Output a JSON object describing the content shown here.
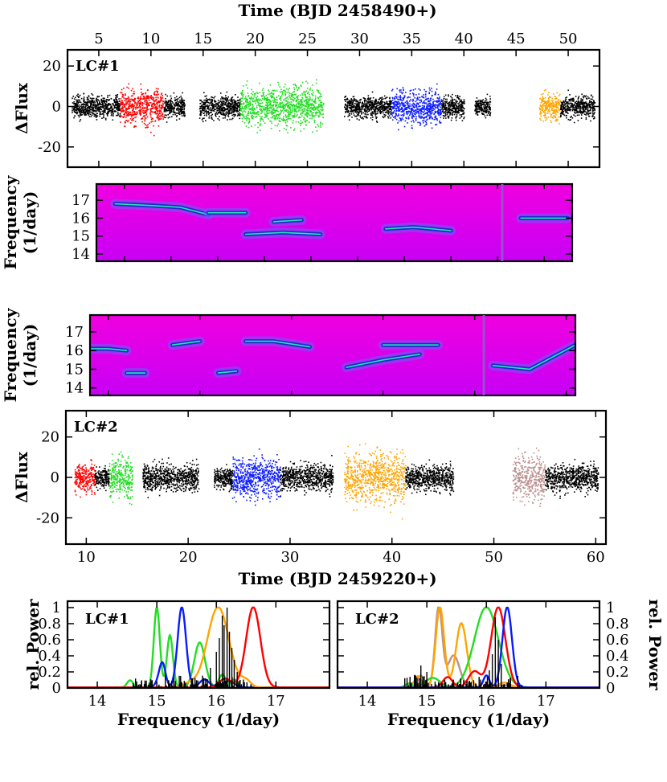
{
  "colors": {
    "red": "#ff0000",
    "green": "#22dd22",
    "blue": "#0a1aff",
    "orange": "#ffa500",
    "rosy": "#bc8f8f",
    "black": "#000000",
    "grey": "#a9a9a9",
    "magenta": "#e100f0",
    "ridge": "#1a2ec0"
  },
  "chart_data": [
    {
      "type": "scatter",
      "panel_label": "LC#1",
      "title": "Time (BJD 2458490+)",
      "xlabel": "",
      "ylabel": "ΔFlux",
      "xlim": [
        2,
        53
      ],
      "ylim": [
        -30,
        28
      ],
      "xticks": [
        5,
        10,
        15,
        20,
        25,
        30,
        35,
        40,
        45,
        50
      ],
      "yticks": [
        -20,
        0,
        20
      ],
      "xtick_labels": [
        "5",
        "10",
        "15",
        "20",
        "25",
        "30",
        "35",
        "40",
        "45",
        "50"
      ],
      "ytick_labels": [
        "-20",
        "0",
        "20"
      ],
      "segments": [
        {
          "t0": 2.4,
          "t1": 7.0,
          "color": "black",
          "amp": 12
        },
        {
          "t0": 7.0,
          "t1": 11.2,
          "color": "red",
          "amp": 20
        },
        {
          "t0": 11.2,
          "t1": 13.2,
          "color": "black",
          "amp": 12
        },
        {
          "t0": 14.6,
          "t1": 18.5,
          "color": "black",
          "amp": 12
        },
        {
          "t0": 18.5,
          "t1": 26.5,
          "color": "green",
          "amp": 22
        },
        {
          "t0": 28.5,
          "t1": 33.0,
          "color": "black",
          "amp": 12
        },
        {
          "t0": 33.0,
          "t1": 37.8,
          "color": "blue",
          "amp": 20
        },
        {
          "t0": 37.8,
          "t1": 40.0,
          "color": "black",
          "amp": 12
        },
        {
          "t0": 41.0,
          "t1": 42.5,
          "color": "black",
          "amp": 10
        },
        {
          "t0": 47.2,
          "t1": 49.2,
          "color": "orange",
          "amp": 15
        },
        {
          "t0": 49.2,
          "t1": 52.5,
          "color": "black",
          "amp": 12
        }
      ]
    },
    {
      "type": "heatmap",
      "title": "",
      "xlabel": "",
      "ylabel": [
        "Frequency",
        "(1/day)"
      ],
      "xlim": [
        2,
        53
      ],
      "ylim": [
        13.6,
        17.9
      ],
      "yticks": [
        14,
        15,
        16,
        17
      ],
      "ytick_labels": [
        "14",
        "15",
        "16",
        "17"
      ],
      "ridges": [
        {
          "t": [
            4,
            8,
            11,
            14
          ],
          "f": [
            16.8,
            16.7,
            16.6,
            16.2
          ]
        },
        {
          "t": [
            14,
            18
          ],
          "f": [
            16.3,
            16.3
          ]
        },
        {
          "t": [
            18,
            22,
            26
          ],
          "f": [
            15.1,
            15.2,
            15.1
          ]
        },
        {
          "t": [
            21,
            24
          ],
          "f": [
            15.8,
            15.9
          ]
        },
        {
          "t": [
            33,
            36,
            40
          ],
          "f": [
            15.4,
            15.5,
            15.3
          ]
        },
        {
          "t": [
            47.5,
            49.5,
            52.5
          ],
          "f": [
            16.0,
            16.0,
            16.0
          ]
        }
      ]
    },
    {
      "type": "heatmap",
      "title": "",
      "xlabel": "",
      "ylabel": [
        "Frequency",
        "(1/day)"
      ],
      "xlim": [
        8,
        61
      ],
      "ylim": [
        13.6,
        17.9
      ],
      "yticks": [
        14,
        15,
        16,
        17
      ],
      "ytick_labels": [
        "14",
        "15",
        "16",
        "17"
      ],
      "ridges": [
        {
          "t": [
            8,
            10,
            12
          ],
          "f": [
            16.1,
            16.1,
            16.0
          ]
        },
        {
          "t": [
            12,
            14
          ],
          "f": [
            14.8,
            14.8
          ]
        },
        {
          "t": [
            17,
            20
          ],
          "f": [
            16.3,
            16.5
          ]
        },
        {
          "t": [
            22,
            24
          ],
          "f": [
            14.8,
            14.9
          ]
        },
        {
          "t": [
            25,
            28,
            32
          ],
          "f": [
            16.5,
            16.5,
            16.2
          ]
        },
        {
          "t": [
            36,
            40,
            44
          ],
          "f": [
            15.1,
            15.5,
            15.8
          ]
        },
        {
          "t": [
            40,
            46
          ],
          "f": [
            16.3,
            16.3
          ]
        },
        {
          "t": [
            52,
            56,
            61
          ],
          "f": [
            15.2,
            15.0,
            16.3
          ]
        }
      ]
    },
    {
      "type": "scatter",
      "panel_label": "LC#2",
      "title": "",
      "xlabel": "Time (BJD 2459220+)",
      "ylabel": "ΔFlux",
      "xlim": [
        8,
        61
      ],
      "ylim": [
        -33,
        33
      ],
      "xticks": [
        10,
        20,
        30,
        40,
        50,
        60
      ],
      "yticks": [
        -20,
        0,
        20
      ],
      "xtick_labels": [
        "10",
        "20",
        "30",
        "40",
        "50",
        "60"
      ],
      "ytick_labels": [
        "-20",
        "0",
        "20"
      ],
      "segments": [
        {
          "t0": 8.8,
          "t1": 10.8,
          "color": "red",
          "amp": 15
        },
        {
          "t0": 10.8,
          "t1": 12.2,
          "color": "black",
          "amp": 12
        },
        {
          "t0": 12.2,
          "t1": 14.5,
          "color": "green",
          "amp": 22
        },
        {
          "t0": 15.5,
          "t1": 21.0,
          "color": "black",
          "amp": 15
        },
        {
          "t0": 22.5,
          "t1": 24.3,
          "color": "black",
          "amp": 12
        },
        {
          "t0": 24.3,
          "t1": 29.0,
          "color": "blue",
          "amp": 22
        },
        {
          "t0": 29.0,
          "t1": 34.2,
          "color": "black",
          "amp": 15
        },
        {
          "t0": 35.3,
          "t1": 41.3,
          "color": "orange",
          "amp": 28
        },
        {
          "t0": 41.3,
          "t1": 46.0,
          "color": "black",
          "amp": 14
        },
        {
          "t0": 51.8,
          "t1": 55.0,
          "color": "rosy",
          "amp": 25
        },
        {
          "t0": 55.0,
          "t1": 60.2,
          "color": "black",
          "amp": 14
        }
      ]
    },
    {
      "type": "line",
      "panel_label": "LC#1",
      "title": "",
      "xlabel": "Frequency (1/day)",
      "ylabel": "rel. Power",
      "xlim": [
        13.5,
        17.9
      ],
      "ylim": [
        0,
        1.08
      ],
      "xticks": [
        14,
        15,
        16,
        17
      ],
      "yticks": [
        0,
        0.2,
        0.4,
        0.6,
        0.8,
        1.0
      ],
      "xtick_labels": [
        "14",
        "15",
        "16",
        "17"
      ],
      "ytick_labels": [
        "0",
        "0.2",
        "0.4",
        "0.6",
        "0.8",
        "1"
      ],
      "series": [
        {
          "name": "green",
          "peaks": [
            [
              14.55,
              0.09,
              0.05
            ],
            [
              15.0,
              1.0,
              0.05
            ],
            [
              15.22,
              0.65,
              0.05
            ],
            [
              15.72,
              0.56,
              0.09
            ],
            [
              16.1,
              0.16,
              0.06
            ],
            [
              16.3,
              0.1,
              0.05
            ]
          ]
        },
        {
          "name": "blue",
          "peaks": [
            [
              15.05,
              0.1,
              0.06
            ],
            [
              15.42,
              1.0,
              0.07
            ],
            [
              15.1,
              0.24,
              0.05
            ],
            [
              15.8,
              0.1,
              0.08
            ],
            [
              16.2,
              0.08,
              0.1
            ]
          ]
        },
        {
          "name": "orange",
          "peaks": [
            [
              15.55,
              0.05,
              0.1
            ],
            [
              16.03,
              1.0,
              0.18
            ],
            [
              16.5,
              0.08,
              0.08
            ]
          ]
        },
        {
          "name": "red",
          "peaks": [
            [
              16.62,
              1.0,
              0.12
            ],
            [
              16.15,
              0.11,
              0.1
            ]
          ]
        },
        {
          "name": "black",
          "spikes": [
            [
              16.0,
              0.45
            ],
            [
              16.05,
              0.62
            ],
            [
              16.1,
              0.9
            ],
            [
              16.13,
              0.78
            ],
            [
              16.18,
              1.0
            ],
            [
              16.22,
              0.7
            ],
            [
              16.26,
              0.5
            ],
            [
              16.3,
              0.35
            ],
            [
              16.35,
              0.2
            ],
            [
              15.6,
              0.12
            ],
            [
              15.4,
              0.15
            ],
            [
              15.9,
              0.25
            ],
            [
              16.4,
              0.1
            ],
            [
              15.2,
              0.08
            ]
          ]
        }
      ]
    },
    {
      "type": "line",
      "panel_label": "LC#2",
      "title": "",
      "xlabel": "Frequency (1/day)",
      "ylabel": "rel. Power",
      "xlim": [
        13.5,
        17.9
      ],
      "ylim": [
        0,
        1.08
      ],
      "xticks": [
        14,
        15,
        16,
        17
      ],
      "yticks": [
        0,
        0.2,
        0.4,
        0.6,
        0.8,
        1.0
      ],
      "xtick_labels": [
        "14",
        "15",
        "16",
        "17"
      ],
      "ytick_labels": [
        "0",
        "0.2",
        "0.4",
        "0.6",
        "0.8",
        "1"
      ],
      "series": [
        {
          "name": "rosy",
          "peaks": [
            [
              15.2,
              1.0,
              0.06
            ],
            [
              15.45,
              0.4,
              0.1
            ],
            [
              14.9,
              0.15,
              0.05
            ],
            [
              16.3,
              0.03,
              0.1
            ]
          ]
        },
        {
          "name": "orange",
          "peaks": [
            [
              15.22,
              1.0,
              0.07
            ],
            [
              15.58,
              0.8,
              0.09
            ],
            [
              14.85,
              0.14,
              0.06
            ],
            [
              16.3,
              0.06,
              0.1
            ]
          ]
        },
        {
          "name": "green",
          "peaks": [
            [
              16.0,
              1.0,
              0.2
            ],
            [
              15.1,
              0.12,
              0.12
            ],
            [
              14.7,
              0.05,
              0.06
            ]
          ]
        },
        {
          "name": "red",
          "peaks": [
            [
              16.2,
              1.0,
              0.12
            ],
            [
              15.8,
              0.2,
              0.1
            ],
            [
              15.35,
              0.13,
              0.08
            ]
          ]
        },
        {
          "name": "blue",
          "peaks": [
            [
              16.35,
              1.0,
              0.08
            ],
            [
              16.0,
              0.15,
              0.05
            ]
          ]
        },
        {
          "name": "black",
          "spikes": [
            [
              16.1,
              0.42
            ],
            [
              16.15,
              0.88
            ],
            [
              16.2,
              0.6
            ],
            [
              16.25,
              0.3
            ],
            [
              16.05,
              0.22
            ],
            [
              14.9,
              0.28
            ],
            [
              15.0,
              0.2
            ],
            [
              14.8,
              0.15
            ],
            [
              15.3,
              0.1
            ],
            [
              16.4,
              0.12
            ]
          ]
        }
      ]
    }
  ]
}
